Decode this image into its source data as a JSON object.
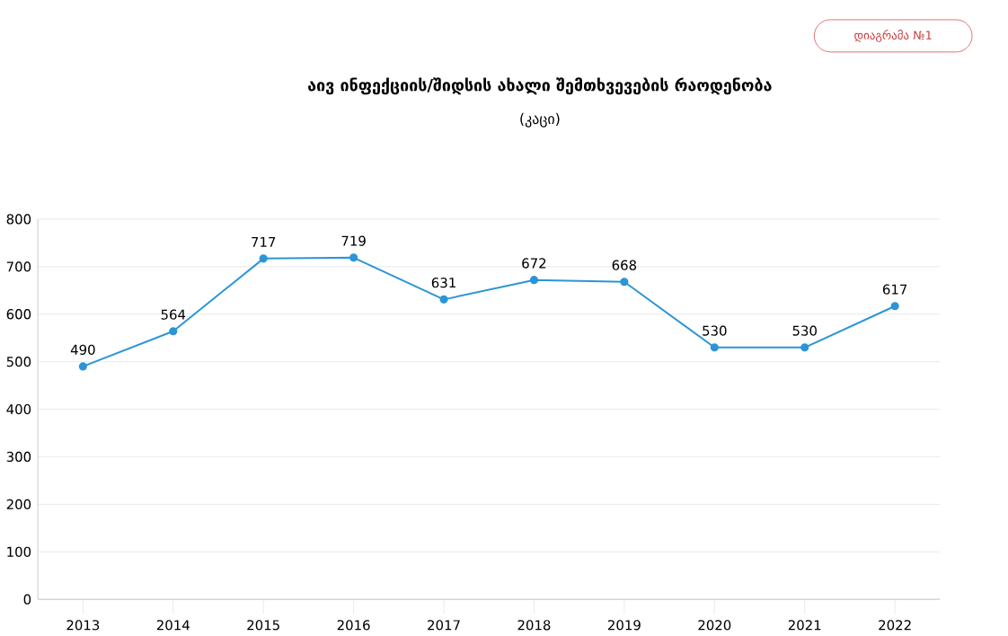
{
  "chart_data": {
    "type": "line",
    "title": "აივ ინფექციის/შიდსის ახალი შემთხვევების რაოდენობა",
    "subtitle": "(კაცი)",
    "annotations": [
      "დიაგრამა №1"
    ],
    "categories": [
      "2013",
      "2014",
      "2015",
      "2016",
      "2017",
      "2018",
      "2019",
      "2020",
      "2021",
      "2022"
    ],
    "values": [
      490,
      564,
      717,
      719,
      631,
      672,
      668,
      530,
      530,
      617
    ],
    "color": "#2b95d6",
    "marker": "circle",
    "line_style": "solid",
    "data_labels": true,
    "ylim": [
      0,
      800
    ],
    "yticks": [
      0,
      100,
      200,
      300,
      400,
      500,
      600,
      700,
      800
    ],
    "grid": "y"
  }
}
